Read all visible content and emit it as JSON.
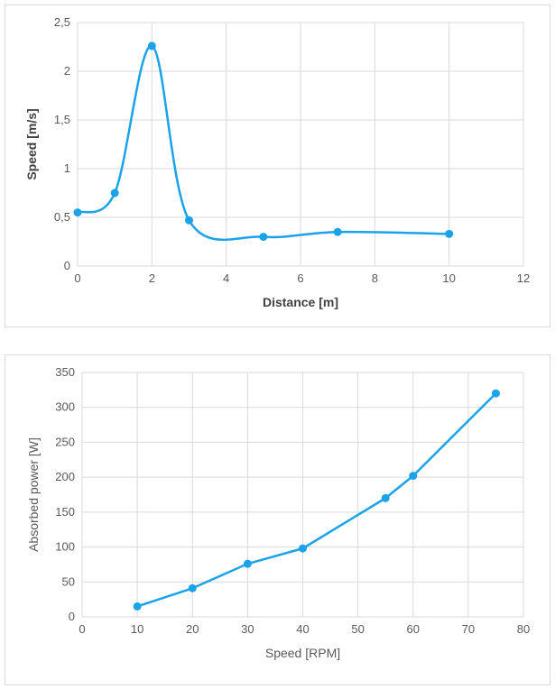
{
  "colors": {
    "series": "#1aa3e8",
    "grid": "#d9d9d9",
    "text": "#595959"
  },
  "chart_data": [
    {
      "type": "line",
      "smooth": true,
      "title": "",
      "xlabel": "Distance [m]",
      "ylabel": "Speed [m/s]",
      "xlim": [
        0,
        12
      ],
      "ylim": [
        0,
        2.5
      ],
      "x_ticks": [
        "0",
        "2",
        "4",
        "6",
        "8",
        "10",
        "12"
      ],
      "y_ticks": [
        "0",
        "0,5",
        "1",
        "1,5",
        "2",
        "2,5"
      ],
      "grid": true,
      "series": [
        {
          "x": [
            0,
            1,
            2,
            3,
            5,
            7,
            10
          ],
          "y": [
            0.55,
            0.75,
            2.26,
            0.47,
            0.3,
            0.35,
            0.33
          ]
        }
      ]
    },
    {
      "type": "line",
      "smooth": false,
      "title": "",
      "xlabel": "Speed [RPM]",
      "ylabel": "Absorbed power [W]",
      "xlim": [
        0,
        80
      ],
      "ylim": [
        0,
        350
      ],
      "x_ticks": [
        "0",
        "10",
        "20",
        "30",
        "40",
        "50",
        "60",
        "70",
        "80"
      ],
      "y_ticks": [
        "0",
        "50",
        "100",
        "150",
        "200",
        "250",
        "300",
        "350"
      ],
      "grid": true,
      "series": [
        {
          "x": [
            10,
            20,
            30,
            40,
            55,
            60,
            75
          ],
          "y": [
            15,
            41,
            76,
            98,
            170,
            202,
            320
          ]
        }
      ]
    }
  ]
}
